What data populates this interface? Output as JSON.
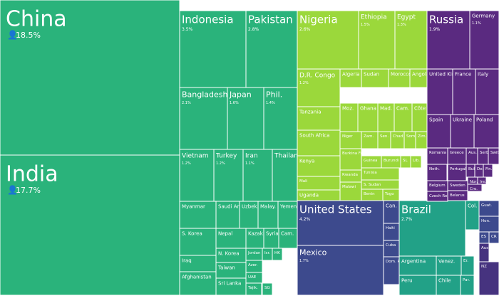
{
  "chart_data": {
    "type": "treemap",
    "colors": {
      "asia": "#2ab37b",
      "africa": "#9bd83b",
      "north_america": "#3d4a8d",
      "south_america": "#22a187",
      "europe": "#5a2a80"
    },
    "people_icon": "person-icon",
    "cells": [
      {
        "name": "China",
        "value": "18.5%",
        "region": "asia",
        "size": "xl"
      },
      {
        "name": "India",
        "value": "17.7%",
        "region": "asia",
        "size": "xl"
      },
      {
        "name": "Indonesia",
        "value": "3.5%",
        "region": "asia",
        "size": "l"
      },
      {
        "name": "Pakistan",
        "value": "2.8%",
        "region": "asia",
        "size": "l"
      },
      {
        "name": "Bangladesh",
        "value": "2.1%",
        "region": "asia",
        "size": "m"
      },
      {
        "name": "Japan",
        "value": "1.6%",
        "region": "asia",
        "size": "m"
      },
      {
        "name": "Phil.",
        "value": "1.4%",
        "region": "asia",
        "size": "m"
      },
      {
        "name": "Vietnam",
        "value": "1.2%",
        "region": "asia",
        "size": "s"
      },
      {
        "name": "Turkey",
        "value": "1.2%",
        "region": "asia",
        "size": "s"
      },
      {
        "name": "Iran",
        "value": "1.1%",
        "region": "asia",
        "size": "s"
      },
      {
        "name": "Thailand",
        "value": "",
        "region": "asia",
        "size": "s"
      },
      {
        "name": "Myanmar",
        "value": "",
        "region": "asia",
        "size": "xs"
      },
      {
        "name": "Saudi Arabia",
        "value": "",
        "region": "asia",
        "size": "xs"
      },
      {
        "name": "Uzbek.",
        "value": "",
        "region": "asia",
        "size": "xs"
      },
      {
        "name": "Malay.",
        "value": "",
        "region": "asia",
        "size": "xs"
      },
      {
        "name": "Yemen",
        "value": "",
        "region": "asia",
        "size": "xs"
      },
      {
        "name": "S. Korea",
        "value": "",
        "region": "asia",
        "size": "xs"
      },
      {
        "name": "Nepal",
        "value": "",
        "region": "asia",
        "size": "xs"
      },
      {
        "name": "Kazak.",
        "value": "",
        "region": "asia",
        "size": "xs"
      },
      {
        "name": "Syria",
        "value": "",
        "region": "asia",
        "size": "xs"
      },
      {
        "name": "Cam.",
        "value": "",
        "region": "asia",
        "size": "xs"
      },
      {
        "name": "Iraq",
        "value": "",
        "region": "asia",
        "size": "xs"
      },
      {
        "name": "N. Korea",
        "value": "",
        "region": "asia",
        "size": "xs"
      },
      {
        "name": "Jordan",
        "value": "",
        "region": "asia",
        "size": "xxs"
      },
      {
        "name": "Isr.",
        "value": "",
        "region": "asia",
        "size": "xxs"
      },
      {
        "name": "HK",
        "value": "",
        "region": "asia",
        "size": "xxs"
      },
      {
        "name": "Taiwan",
        "value": "",
        "region": "asia",
        "size": "xs"
      },
      {
        "name": "Azer.",
        "value": "",
        "region": "asia",
        "size": "xxs"
      },
      {
        "name": "UAE",
        "value": "",
        "region": "asia",
        "size": "xxs"
      },
      {
        "name": "Afghanistan",
        "value": "",
        "region": "asia",
        "size": "xs"
      },
      {
        "name": "Sri Lanka",
        "value": "",
        "region": "asia",
        "size": "xs"
      },
      {
        "name": "Tajik.",
        "value": "",
        "region": "asia",
        "size": "xxs"
      },
      {
        "name": "SG",
        "value": "",
        "region": "asia",
        "size": "xxs"
      },
      {
        "name": "Nigeria",
        "value": "2.6%",
        "region": "africa",
        "size": "l"
      },
      {
        "name": "Ethiopia",
        "value": "1.5%",
        "region": "africa",
        "size": "s"
      },
      {
        "name": "Egypt",
        "value": "1.3%",
        "region": "africa",
        "size": "s"
      },
      {
        "name": "D.R. Congo",
        "value": "1.2%",
        "region": "africa",
        "size": "s"
      },
      {
        "name": "Algeria",
        "value": "",
        "region": "africa",
        "size": "xs"
      },
      {
        "name": "Sudan",
        "value": "",
        "region": "africa",
        "size": "xs"
      },
      {
        "name": "Morocco",
        "value": "",
        "region": "africa",
        "size": "xs"
      },
      {
        "name": "Angola",
        "value": "",
        "region": "africa",
        "size": "xs"
      },
      {
        "name": "Tanzania",
        "value": "",
        "region": "africa",
        "size": "xs"
      },
      {
        "name": "Moz.",
        "value": "",
        "region": "africa",
        "size": "xs"
      },
      {
        "name": "Ghana",
        "value": "",
        "region": "africa",
        "size": "xs"
      },
      {
        "name": "Mad.",
        "value": "",
        "region": "africa",
        "size": "xs"
      },
      {
        "name": "Cam.",
        "value": "",
        "region": "africa",
        "size": "xs"
      },
      {
        "name": "Côte",
        "value": "",
        "region": "africa",
        "size": "xs"
      },
      {
        "name": "South Africa",
        "value": "",
        "region": "africa",
        "size": "xs"
      },
      {
        "name": "Niger",
        "value": "",
        "region": "africa",
        "size": "xxs"
      },
      {
        "name": "Zam.",
        "value": "",
        "region": "africa",
        "size": "xxs"
      },
      {
        "name": "Sen.",
        "value": "",
        "region": "africa",
        "size": "xxs"
      },
      {
        "name": "Chad",
        "value": "",
        "region": "africa",
        "size": "xxs"
      },
      {
        "name": "Som.",
        "value": "",
        "region": "africa",
        "size": "xxs"
      },
      {
        "name": "Zim.",
        "value": "",
        "region": "africa",
        "size": "xxs"
      },
      {
        "name": "Kenya",
        "value": "",
        "region": "africa",
        "size": "xs"
      },
      {
        "name": "Burkina Faso",
        "value": "",
        "region": "africa",
        "size": "xxs"
      },
      {
        "name": "Guinea",
        "value": "",
        "region": "africa",
        "size": "xxs"
      },
      {
        "name": "Burundi",
        "value": "",
        "region": "africa",
        "size": "xxs"
      },
      {
        "name": "SL",
        "value": "",
        "region": "africa",
        "size": "xxs"
      },
      {
        "name": "Lib.",
        "value": "",
        "region": "africa",
        "size": "xxs"
      },
      {
        "name": "Mali",
        "value": "",
        "region": "africa",
        "size": "xxs"
      },
      {
        "name": "Rwanda",
        "value": "",
        "region": "africa",
        "size": "xxs"
      },
      {
        "name": "Tunisia",
        "value": "",
        "region": "africa",
        "size": "xxs"
      },
      {
        "name": "S. Sudan",
        "value": "",
        "region": "africa",
        "size": "xxs"
      },
      {
        "name": "Uganda",
        "value": "",
        "region": "africa",
        "size": "xs"
      },
      {
        "name": "Malawi",
        "value": "",
        "region": "africa",
        "size": "xxs"
      },
      {
        "name": "Benin",
        "value": "",
        "region": "africa",
        "size": "xxs"
      },
      {
        "name": "Togo",
        "value": "",
        "region": "africa",
        "size": "xxs"
      },
      {
        "name": "United States",
        "value": "4.2%",
        "region": "north_america",
        "size": "l"
      },
      {
        "name": "Mexico",
        "value": "1.7%",
        "region": "north_america",
        "size": "m"
      },
      {
        "name": "Can.",
        "value": "",
        "region": "north_america",
        "size": "xs"
      },
      {
        "name": "Haiti",
        "value": "",
        "region": "north_america",
        "size": "xxs"
      },
      {
        "name": "Cuba",
        "value": "",
        "region": "north_america",
        "size": "xxs"
      },
      {
        "name": "Dom. Rep.",
        "value": "",
        "region": "north_america",
        "size": "xxs"
      },
      {
        "name": "Brazil",
        "value": "2.7%",
        "region": "south_america",
        "size": "l"
      },
      {
        "name": "Col.",
        "value": "",
        "region": "south_america",
        "size": "xs"
      },
      {
        "name": "Argentina",
        "value": "",
        "region": "south_america",
        "size": "xs"
      },
      {
        "name": "Venez.",
        "value": "",
        "region": "south_america",
        "size": "xs"
      },
      {
        "name": "Er.",
        "value": "",
        "region": "south_america",
        "size": "xxs"
      },
      {
        "name": "Peru",
        "value": "",
        "region": "south_america",
        "size": "xs"
      },
      {
        "name": "Chile",
        "value": "",
        "region": "south_america",
        "size": "xs"
      },
      {
        "name": "Par.",
        "value": "",
        "region": "south_america",
        "size": "xxs"
      },
      {
        "name": "Guat.",
        "value": "",
        "region": "north_america",
        "size": "xxs"
      },
      {
        "name": "Hon.",
        "value": "",
        "region": "north_america",
        "size": "xxs"
      },
      {
        "name": "ES",
        "value": "",
        "region": "north_america",
        "size": "xxs"
      },
      {
        "name": "CR",
        "value": "",
        "region": "north_america",
        "size": "xxs"
      },
      {
        "name": "Aus.",
        "value": "",
        "region": "oceania",
        "size": "xxs"
      },
      {
        "name": "NZ",
        "value": "",
        "region": "oceania",
        "size": "xxs"
      },
      {
        "name": "Russia",
        "value": "1.9%",
        "region": "europe",
        "size": "l"
      },
      {
        "name": "Germany",
        "value": "1.1%",
        "region": "europe",
        "size": "xs"
      },
      {
        "name": "United Kingdom",
        "value": "",
        "region": "europe",
        "size": "xs"
      },
      {
        "name": "France",
        "value": "",
        "region": "europe",
        "size": "xs"
      },
      {
        "name": "Italy",
        "value": "",
        "region": "europe",
        "size": "xs"
      },
      {
        "name": "Spain",
        "value": "",
        "region": "europe",
        "size": "xs"
      },
      {
        "name": "Ukraine",
        "value": "",
        "region": "europe",
        "size": "xs"
      },
      {
        "name": "Poland",
        "value": "",
        "region": "europe",
        "size": "xs"
      },
      {
        "name": "Romania",
        "value": "",
        "region": "europe",
        "size": "xxs"
      },
      {
        "name": "Greece",
        "value": "",
        "region": "europe",
        "size": "xxs"
      },
      {
        "name": "Aus.",
        "value": "",
        "region": "europe",
        "size": "xxs"
      },
      {
        "name": "Serb.",
        "value": "",
        "region": "europe",
        "size": "xxs"
      },
      {
        "name": "Swit.",
        "value": "",
        "region": "europe",
        "size": "xxs"
      },
      {
        "name": "Neth.",
        "value": "",
        "region": "europe",
        "size": "xxs"
      },
      {
        "name": "Portugal",
        "value": "",
        "region": "europe",
        "size": "xxs"
      },
      {
        "name": "Bul.",
        "value": "",
        "region": "europe",
        "size": "xxs"
      },
      {
        "name": "De.",
        "value": "",
        "region": "europe",
        "size": "xxs"
      },
      {
        "name": "Fin.",
        "value": "",
        "region": "europe",
        "size": "xxs"
      },
      {
        "name": "Sweden",
        "value": "",
        "region": "europe",
        "size": "xxs"
      },
      {
        "name": "Belgium",
        "value": "",
        "region": "europe",
        "size": "xxs"
      },
      {
        "name": "Hungary",
        "value": "",
        "region": "europe",
        "size": "xxs"
      },
      {
        "name": "Nor.",
        "value": "",
        "region": "europe",
        "size": "xxs"
      },
      {
        "name": "Ire.",
        "value": "",
        "region": "europe",
        "size": "xxs"
      },
      {
        "name": "Czech Rep.",
        "value": "",
        "region": "europe",
        "size": "xxs"
      },
      {
        "name": "Belarus",
        "value": "",
        "region": "europe",
        "size": "xxs"
      },
      {
        "name": "Cro.",
        "value": "",
        "region": "europe",
        "size": "xxs"
      }
    ]
  }
}
